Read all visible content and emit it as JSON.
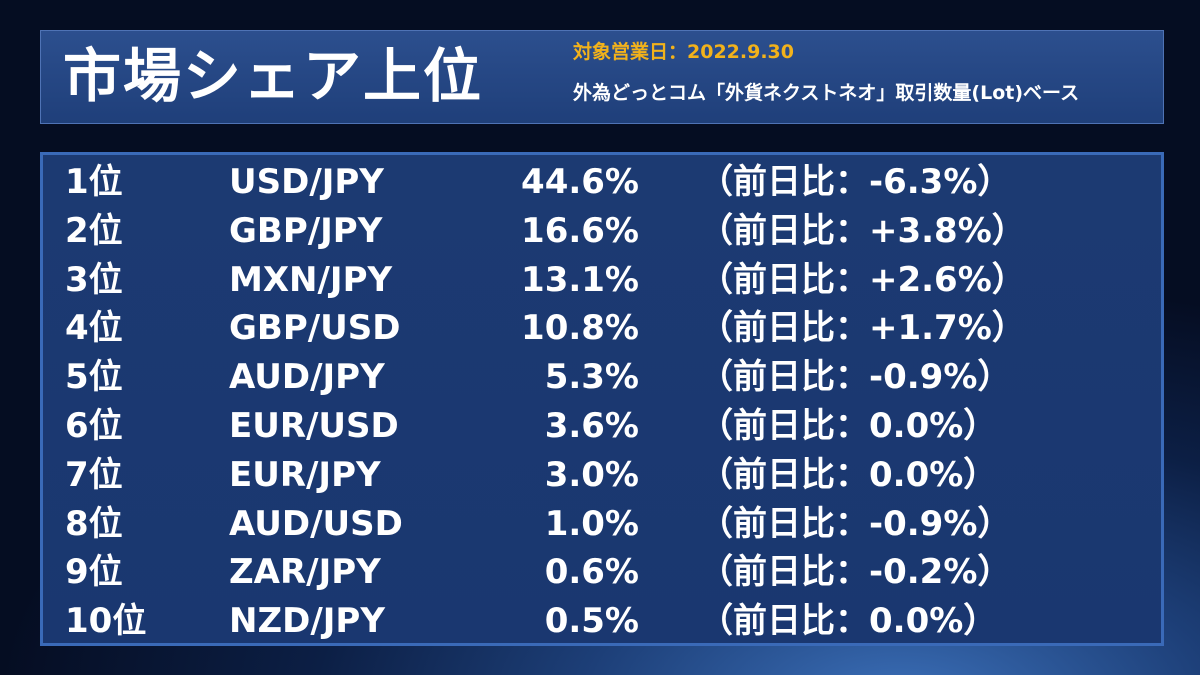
{
  "header": {
    "title": "市場シェア上位",
    "date_label": "対象営業日：2022.9.30",
    "basis_label": "外為どっとコム「外貨ネクストネオ」取引数量(Lot)ベース"
  },
  "colors": {
    "accent_date": "#f2b21b",
    "panel_border": "#3a6ab8",
    "text": "#ffffff"
  },
  "rankings": [
    {
      "rank": "1位",
      "pair": "USD/JPY",
      "share": "44.6%",
      "change": "（前日比：-6.3%）"
    },
    {
      "rank": "2位",
      "pair": "GBP/JPY",
      "share": "16.6%",
      "change": "（前日比：+3.8%）"
    },
    {
      "rank": "3位",
      "pair": "MXN/JPY",
      "share": "13.1%",
      "change": "（前日比：+2.6%）"
    },
    {
      "rank": "4位",
      "pair": "GBP/USD",
      "share": "10.8%",
      "change": "（前日比：+1.7%）"
    },
    {
      "rank": "5位",
      "pair": "AUD/JPY",
      "share": "5.3%",
      "change": "（前日比：-0.9%）"
    },
    {
      "rank": "6位",
      "pair": "EUR/USD",
      "share": "3.6%",
      "change": "（前日比：0.0%）"
    },
    {
      "rank": "7位",
      "pair": "EUR/JPY",
      "share": "3.0%",
      "change": "（前日比：0.0%）"
    },
    {
      "rank": "8位",
      "pair": "AUD/USD",
      "share": "1.0%",
      "change": "（前日比：-0.9%）"
    },
    {
      "rank": "9位",
      "pair": "ZAR/JPY",
      "share": "0.6%",
      "change": "（前日比：-0.2%）"
    },
    {
      "rank": "10位",
      "pair": "NZD/JPY",
      "share": "0.5%",
      "change": "（前日比：0.0%）"
    }
  ]
}
